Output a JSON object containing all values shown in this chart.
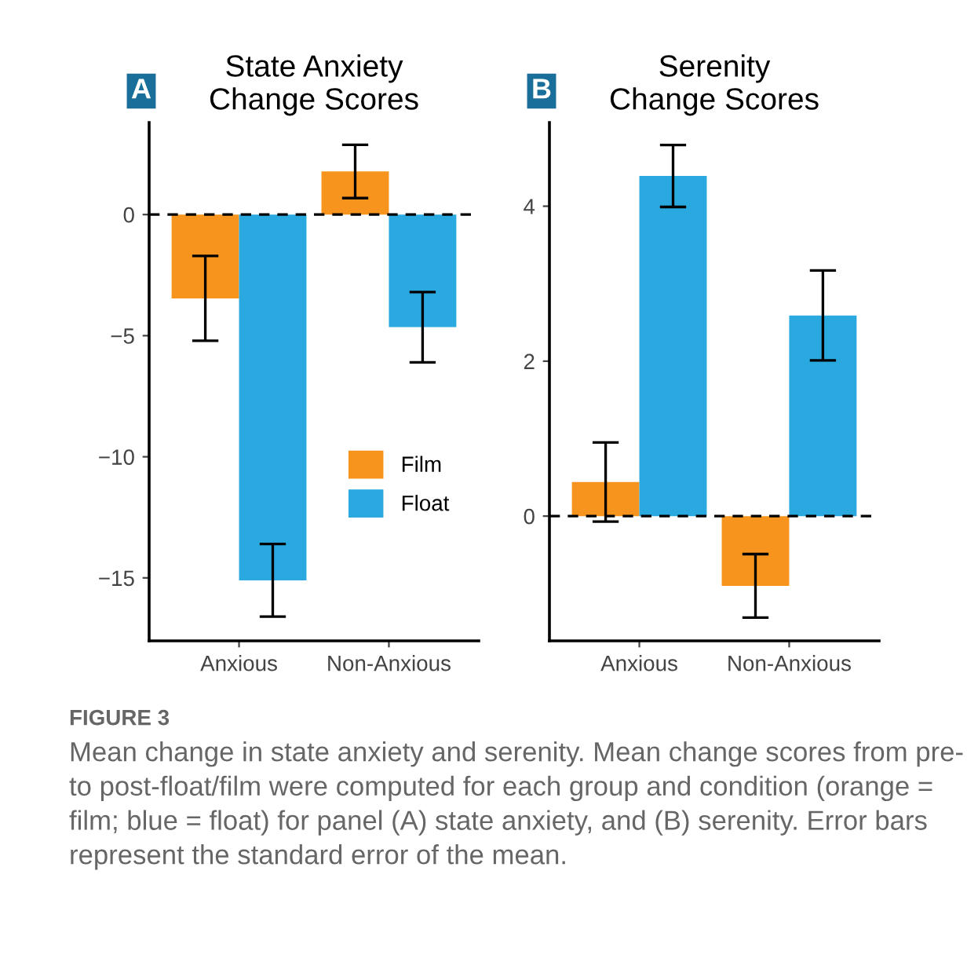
{
  "chart_data": [
    {
      "type": "bar",
      "title": "State Anxiety\nChange Scores",
      "categories": [
        "Anxious",
        "Non-Anxious"
      ],
      "series": [
        {
          "name": "Film",
          "color": "#f7941d",
          "values": [
            -3.46,
            1.78
          ],
          "errors": [
            1.75,
            1.1
          ]
        },
        {
          "name": "Float",
          "color": "#29a9e0",
          "values": [
            -15.1,
            -4.65
          ],
          "errors": [
            1.5,
            1.45
          ]
        }
      ],
      "ylim": [
        -17.6,
        3.8
      ],
      "yticks": [
        {
          "value": 0,
          "label": "0"
        },
        {
          "value": -5,
          "label": "−5"
        },
        {
          "value": -10,
          "label": "−10"
        },
        {
          "value": -15,
          "label": "−15"
        }
      ],
      "ref_lines": [
        {
          "axis": "y",
          "value": 0,
          "line_style": "dashed",
          "color": "#000000"
        }
      ],
      "legend": "bottom right",
      "grid": false,
      "annotations": [
        "A",
        "FIGURE 3",
        "Mean change in state anxiety and serenity. Mean change scores from pre- to post-float/film were computed for each group and condition (orange = film; blue = float) for panel (A) state anxiety, and (B) serenity. Error bars represent the standard error of the mean."
      ]
    },
    {
      "type": "bar",
      "title": "Serenity\nChange Scores",
      "categories": [
        "Anxious",
        "Non-Anxious"
      ],
      "series": [
        {
          "color": "#f7941d",
          "values": [
            0.44,
            -0.9
          ],
          "errors": [
            0.51,
            0.41
          ]
        },
        {
          "color": "#29a9e0",
          "values": [
            4.39,
            2.59
          ],
          "errors": [
            0.4,
            0.58
          ]
        }
      ],
      "ylim": [
        -1.61,
        5.08
      ],
      "yticks": [
        0,
        2,
        4
      ],
      "ref_lines": [
        {
          "axis": "y",
          "value": 0,
          "line_style": "dashed",
          "color": "#000000"
        }
      ],
      "grid": false,
      "annotations": [
        "B"
      ]
    }
  ]
}
